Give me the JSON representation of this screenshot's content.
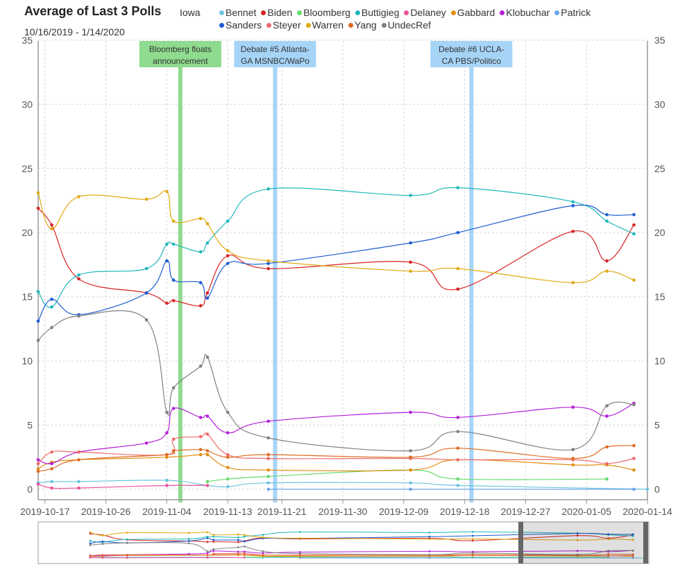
{
  "header": {
    "title": "Average of Last 3 Polls",
    "date_range": "10/16/2019 - 1/14/2020",
    "state": "Iowa"
  },
  "chart_data": {
    "type": "line",
    "title": "Average of Last 3 Polls",
    "subtitle": "10/16/2019 - 1/14/2020",
    "x_type": "date",
    "xlim": [
      "2019-10-16",
      "2020-01-14"
    ],
    "ylim": [
      0,
      35
    ],
    "yticks": [
      0,
      5,
      10,
      15,
      20,
      25,
      30,
      35
    ],
    "xticks": [
      "2019-10-17",
      "2019-10-26",
      "2019-11-04",
      "2019-11-13",
      "2019-11-21",
      "2019-11-30",
      "2019-12-09",
      "2019-12-18",
      "2019-12-27",
      "2020-01-05",
      "2020-01-14"
    ],
    "grid": true,
    "legend_position": "top",
    "series": [
      {
        "name": "Bennet",
        "color": "#6cc3de",
        "points": [
          [
            "2019-10-16",
            0.5
          ],
          [
            "2019-10-18",
            0.6
          ],
          [
            "2019-10-22",
            0.6
          ],
          [
            "2019-11-04",
            0.7
          ],
          [
            "2019-11-10",
            0.3
          ],
          [
            "2019-11-13",
            0.2
          ],
          [
            "2019-11-19",
            0.5
          ],
          [
            "2019-12-10",
            0.5
          ],
          [
            "2019-12-17",
            0.3
          ],
          [
            "2020-01-14",
            0.0
          ]
        ]
      },
      {
        "name": "Biden",
        "color": "#d62222",
        "points": [
          [
            "2019-10-16",
            21.9
          ],
          [
            "2019-10-18",
            20.6
          ],
          [
            "2019-10-22",
            16.4
          ],
          [
            "2019-11-01",
            15.3
          ],
          [
            "2019-11-04",
            14.5
          ],
          [
            "2019-11-05",
            14.7
          ],
          [
            "2019-11-09",
            14.3
          ],
          [
            "2019-11-10",
            15.3
          ],
          [
            "2019-11-13",
            18.2
          ],
          [
            "2019-11-19",
            17.2
          ],
          [
            "2019-12-10",
            17.7
          ],
          [
            "2019-12-17",
            15.6
          ],
          [
            "2020-01-03",
            20.1
          ],
          [
            "2020-01-08",
            17.8
          ],
          [
            "2020-01-12",
            20.6
          ]
        ]
      },
      {
        "name": "Bloomberg",
        "color": "#66d96b",
        "points": [
          [
            "2019-11-10",
            0.6
          ],
          [
            "2019-11-13",
            0.8
          ],
          [
            "2019-11-19",
            1.0
          ],
          [
            "2019-12-10",
            1.5
          ],
          [
            "2019-12-17",
            0.8
          ],
          [
            "2020-01-08",
            0.8
          ]
        ]
      },
      {
        "name": "Buttigieg",
        "color": "#1fb7b9",
        "points": [
          [
            "2019-10-16",
            15.4
          ],
          [
            "2019-10-18",
            14.2
          ],
          [
            "2019-10-22",
            16.7
          ],
          [
            "2019-11-01",
            17.2
          ],
          [
            "2019-11-04",
            19.1
          ],
          [
            "2019-11-05",
            19.1
          ],
          [
            "2019-11-09",
            18.5
          ],
          [
            "2019-11-10",
            19.2
          ],
          [
            "2019-11-13",
            20.9
          ],
          [
            "2019-11-19",
            23.4
          ],
          [
            "2019-12-10",
            22.9
          ],
          [
            "2019-12-17",
            23.5
          ],
          [
            "2020-01-03",
            22.4
          ],
          [
            "2020-01-08",
            20.9
          ],
          [
            "2020-01-12",
            19.9
          ]
        ]
      },
      {
        "name": "Delaney",
        "color": "#e8539a",
        "points": [
          [
            "2019-10-16",
            0.4
          ],
          [
            "2019-10-18",
            0.1
          ],
          [
            "2019-10-22",
            0.1
          ],
          [
            "2019-11-04",
            0.3
          ],
          [
            "2019-11-10",
            0.3
          ]
        ]
      },
      {
        "name": "Gabbard",
        "color": "#e28d0f",
        "points": [
          [
            "2019-10-16",
            1.6
          ],
          [
            "2019-10-18",
            2.1
          ],
          [
            "2019-10-22",
            2.3
          ],
          [
            "2019-11-04",
            2.5
          ],
          [
            "2019-11-09",
            2.7
          ],
          [
            "2019-11-10",
            2.7
          ],
          [
            "2019-11-13",
            1.7
          ],
          [
            "2019-11-19",
            1.5
          ],
          [
            "2019-12-10",
            1.5
          ],
          [
            "2019-12-17",
            2.3
          ],
          [
            "2020-01-03",
            1.9
          ],
          [
            "2020-01-08",
            1.9
          ],
          [
            "2020-01-12",
            1.5
          ]
        ]
      },
      {
        "name": "Klobuchar",
        "color": "#b31ed8",
        "points": [
          [
            "2019-10-16",
            2.3
          ],
          [
            "2019-10-18",
            2.0
          ],
          [
            "2019-10-22",
            2.9
          ],
          [
            "2019-11-01",
            3.6
          ],
          [
            "2019-11-04",
            4.4
          ],
          [
            "2019-11-05",
            6.3
          ],
          [
            "2019-11-09",
            5.6
          ],
          [
            "2019-11-10",
            5.7
          ],
          [
            "2019-11-13",
            4.4
          ],
          [
            "2019-11-19",
            5.3
          ],
          [
            "2019-12-10",
            6.0
          ],
          [
            "2019-12-17",
            5.6
          ],
          [
            "2020-01-03",
            6.4
          ],
          [
            "2020-01-08",
            5.7
          ],
          [
            "2020-01-12",
            6.7
          ]
        ]
      },
      {
        "name": "Patrick",
        "color": "#6aa2ea",
        "points": [
          [
            "2019-11-19",
            0.0
          ],
          [
            "2019-12-10",
            0.0
          ],
          [
            "2020-01-12",
            0.0
          ]
        ]
      },
      {
        "name": "Sanders",
        "color": "#1b5bd1",
        "points": [
          [
            "2019-10-16",
            13.1
          ],
          [
            "2019-10-18",
            14.8
          ],
          [
            "2019-10-22",
            13.6
          ],
          [
            "2019-11-01",
            15.3
          ],
          [
            "2019-11-04",
            17.8
          ],
          [
            "2019-11-05",
            16.3
          ],
          [
            "2019-11-09",
            16.1
          ],
          [
            "2019-11-10",
            14.9
          ],
          [
            "2019-11-13",
            17.6
          ],
          [
            "2019-11-19",
            17.6
          ],
          [
            "2019-12-10",
            19.2
          ],
          [
            "2019-12-17",
            20.0
          ],
          [
            "2020-01-03",
            22.1
          ],
          [
            "2020-01-08",
            21.4
          ],
          [
            "2020-01-12",
            21.4
          ]
        ]
      },
      {
        "name": "Steyer",
        "color": "#eb6a6a",
        "points": [
          [
            "2019-10-16",
            2.0
          ],
          [
            "2019-10-18",
            2.9
          ],
          [
            "2019-10-22",
            2.9
          ],
          [
            "2019-11-04",
            2.7
          ],
          [
            "2019-11-05",
            3.9
          ],
          [
            "2019-11-09",
            4.1
          ],
          [
            "2019-11-10",
            4.3
          ],
          [
            "2019-11-13",
            2.7
          ],
          [
            "2019-11-19",
            2.4
          ],
          [
            "2019-12-10",
            2.4
          ],
          [
            "2019-12-17",
            2.3
          ],
          [
            "2020-01-03",
            2.3
          ],
          [
            "2020-01-08",
            2.0
          ],
          [
            "2020-01-12",
            2.4
          ]
        ]
      },
      {
        "name": "Warren",
        "color": "#e0a812",
        "points": [
          [
            "2019-10-16",
            23.1
          ],
          [
            "2019-10-18",
            20.3
          ],
          [
            "2019-10-22",
            22.8
          ],
          [
            "2019-11-01",
            22.6
          ],
          [
            "2019-11-04",
            23.2
          ],
          [
            "2019-11-05",
            20.9
          ],
          [
            "2019-11-09",
            21.1
          ],
          [
            "2019-11-10",
            20.7
          ],
          [
            "2019-11-13",
            18.6
          ],
          [
            "2019-11-19",
            17.8
          ],
          [
            "2019-12-10",
            17.0
          ],
          [
            "2019-12-17",
            17.2
          ],
          [
            "2020-01-03",
            16.1
          ],
          [
            "2020-01-08",
            17.0
          ],
          [
            "2020-01-12",
            16.3
          ]
        ]
      },
      {
        "name": "Yang",
        "color": "#de6b22",
        "points": [
          [
            "2019-10-16",
            1.4
          ],
          [
            "2019-10-18",
            1.6
          ],
          [
            "2019-10-22",
            2.3
          ],
          [
            "2019-11-04",
            2.7
          ],
          [
            "2019-11-05",
            3.0
          ],
          [
            "2019-11-09",
            3.1
          ],
          [
            "2019-11-10",
            3.0
          ],
          [
            "2019-11-13",
            2.5
          ],
          [
            "2019-11-19",
            2.7
          ],
          [
            "2019-12-10",
            2.5
          ],
          [
            "2019-12-17",
            3.2
          ],
          [
            "2020-01-03",
            2.4
          ],
          [
            "2020-01-08",
            3.3
          ],
          [
            "2020-01-12",
            3.4
          ]
        ]
      },
      {
        "name": "UndecRef",
        "color": "#808080",
        "points": [
          [
            "2019-10-16",
            11.6
          ],
          [
            "2019-10-18",
            12.6
          ],
          [
            "2019-10-22",
            13.5
          ],
          [
            "2019-11-01",
            13.2
          ],
          [
            "2019-11-04",
            6.0
          ],
          [
            "2019-11-05",
            7.9
          ],
          [
            "2019-11-09",
            9.6
          ],
          [
            "2019-11-10",
            10.3
          ],
          [
            "2019-11-13",
            6.0
          ],
          [
            "2019-11-19",
            4.0
          ],
          [
            "2019-12-10",
            3.0
          ],
          [
            "2019-12-17",
            4.5
          ],
          [
            "2020-01-03",
            3.1
          ],
          [
            "2020-01-08",
            6.5
          ],
          [
            "2020-01-12",
            6.6
          ]
        ]
      }
    ],
    "annotations": [
      {
        "date": "2019-11-06",
        "color": "#8fdb8f",
        "text_lines": [
          "Bloomberg floats",
          "announcement"
        ]
      },
      {
        "date": "2019-11-20",
        "color": "#a6d4f7",
        "text_lines": [
          "Debate #5 Atlanta-",
          "GA MSNBC/WaPo"
        ]
      },
      {
        "date": "2019-12-19",
        "color": "#a6d4f7",
        "text_lines": [
          "Debate #6 UCLA-",
          "CA PBS/Politico"
        ]
      }
    ]
  }
}
